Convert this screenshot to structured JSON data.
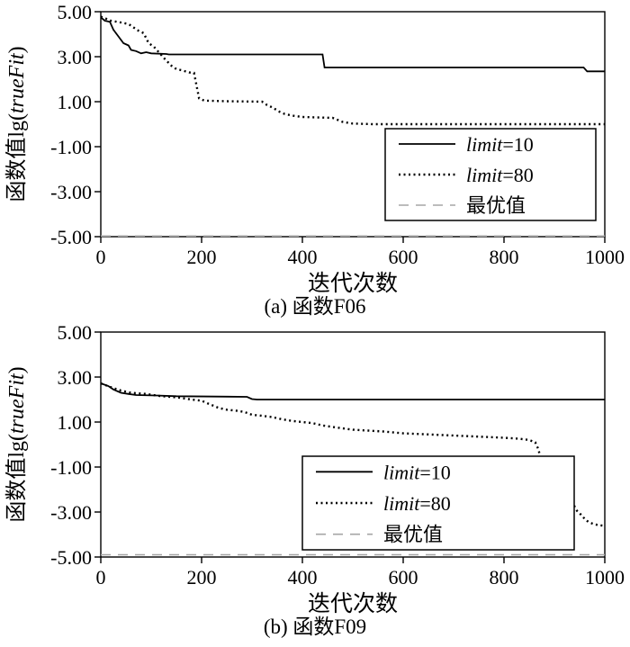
{
  "page": {
    "background": "#ffffff"
  },
  "chart_data": [
    {
      "type": "line",
      "caption": "(a) 函数F06",
      "xlabel": "迭代次数",
      "ylabel": "函数值lg(trueFit)",
      "ylabel_parts": [
        {
          "t": "函数值lg(",
          "i": false
        },
        {
          "t": "trueFit",
          "i": true
        },
        {
          "t": ")",
          "i": false
        }
      ],
      "xlim": [
        0,
        1000
      ],
      "ylim": [
        -5,
        5
      ],
      "xticks": [
        {
          "v": 0,
          "label": "0"
        },
        {
          "v": 200,
          "label": "200"
        },
        {
          "v": 400,
          "label": "400"
        },
        {
          "v": 600,
          "label": "600"
        },
        {
          "v": 800,
          "label": "800"
        },
        {
          "v": 1000,
          "label": "1000"
        }
      ],
      "yticks": [
        {
          "v": 5,
          "label": "5.00"
        },
        {
          "v": 3,
          "label": "3.00"
        },
        {
          "v": 1,
          "label": "1.00"
        },
        {
          "v": -1,
          "label": "-1.00"
        },
        {
          "v": -3,
          "label": "-3.00"
        },
        {
          "v": -5,
          "label": "-5.00"
        }
      ],
      "legend": {
        "position": "right-middle",
        "entries": [
          {
            "name": "limit=10",
            "style": "solid",
            "color": "#000000"
          },
          {
            "name": "limit=80",
            "style": "dotted",
            "color": "#000000"
          },
          {
            "name": "最优值",
            "style": "dashed",
            "color": "#a6a6a6"
          }
        ]
      },
      "series": [
        {
          "name": "limit=10",
          "style": "solid",
          "color": "#000000",
          "points": [
            [
              0,
              4.75
            ],
            [
              8,
              4.6
            ],
            [
              18,
              4.55
            ],
            [
              25,
              4.2
            ],
            [
              35,
              3.9
            ],
            [
              45,
              3.6
            ],
            [
              55,
              3.5
            ],
            [
              60,
              3.3
            ],
            [
              70,
              3.25
            ],
            [
              80,
              3.15
            ],
            [
              90,
              3.2
            ],
            [
              100,
              3.15
            ],
            [
              130,
              3.12
            ],
            [
              135,
              3.1
            ],
            [
              440,
              3.1
            ],
            [
              444,
              2.52
            ],
            [
              958,
              2.52
            ],
            [
              965,
              2.35
            ],
            [
              1000,
              2.35
            ]
          ]
        },
        {
          "name": "limit=80",
          "style": "dotted",
          "color": "#000000",
          "points": [
            [
              0,
              4.78
            ],
            [
              20,
              4.6
            ],
            [
              40,
              4.52
            ],
            [
              55,
              4.45
            ],
            [
              65,
              4.3
            ],
            [
              75,
              4.15
            ],
            [
              85,
              4.05
            ],
            [
              95,
              3.6
            ],
            [
              105,
              3.45
            ],
            [
              115,
              3.2
            ],
            [
              125,
              2.95
            ],
            [
              140,
              2.6
            ],
            [
              150,
              2.45
            ],
            [
              160,
              2.4
            ],
            [
              175,
              2.3
            ],
            [
              185,
              2.28
            ],
            [
              195,
              1.15
            ],
            [
              205,
              1.05
            ],
            [
              250,
              1.02
            ],
            [
              320,
              1.0
            ],
            [
              330,
              0.85
            ],
            [
              340,
              0.75
            ],
            [
              355,
              0.55
            ],
            [
              365,
              0.45
            ],
            [
              380,
              0.38
            ],
            [
              400,
              0.32
            ],
            [
              430,
              0.3
            ],
            [
              460,
              0.28
            ],
            [
              480,
              0.1
            ],
            [
              500,
              0.03
            ],
            [
              540,
              0.0
            ],
            [
              1000,
              0.0
            ]
          ]
        },
        {
          "name": "最优值",
          "style": "dashed",
          "color": "#a6a6a6",
          "points": [
            [
              0,
              -4.97
            ],
            [
              1000,
              -4.97
            ]
          ]
        }
      ]
    },
    {
      "type": "line",
      "caption": "(b) 函数F09",
      "xlabel": "迭代次数",
      "ylabel": "函数值lg(trueFit)",
      "ylabel_parts": [
        {
          "t": "函数值lg(",
          "i": false
        },
        {
          "t": "trueFit",
          "i": true
        },
        {
          "t": ")",
          "i": false
        }
      ],
      "xlim": [
        0,
        1000
      ],
      "ylim": [
        -5,
        5
      ],
      "xticks": [
        {
          "v": 0,
          "label": "0"
        },
        {
          "v": 200,
          "label": "200"
        },
        {
          "v": 400,
          "label": "400"
        },
        {
          "v": 600,
          "label": "600"
        },
        {
          "v": 800,
          "label": "800"
        },
        {
          "v": 1000,
          "label": "1000"
        }
      ],
      "yticks": [
        {
          "v": 5,
          "label": "5.00"
        },
        {
          "v": 3,
          "label": "3.00"
        },
        {
          "v": 1,
          "label": "1.00"
        },
        {
          "v": -1,
          "label": "-1.00"
        },
        {
          "v": -3,
          "label": "-3.00"
        },
        {
          "v": -5,
          "label": "-5.00"
        }
      ],
      "legend": {
        "position": "center-bottom",
        "entries": [
          {
            "name": "limit=10",
            "style": "solid",
            "color": "#000000"
          },
          {
            "name": "limit=80",
            "style": "dotted",
            "color": "#000000"
          },
          {
            "name": "最优值",
            "style": "dashed",
            "color": "#a6a6a6"
          }
        ]
      },
      "series": [
        {
          "name": "limit=10",
          "style": "solid",
          "color": "#000000",
          "points": [
            [
              0,
              2.72
            ],
            [
              15,
              2.6
            ],
            [
              25,
              2.45
            ],
            [
              40,
              2.3
            ],
            [
              55,
              2.25
            ],
            [
              70,
              2.2
            ],
            [
              110,
              2.18
            ],
            [
              150,
              2.15
            ],
            [
              290,
              2.12
            ],
            [
              300,
              2.02
            ],
            [
              310,
              2.0
            ],
            [
              1000,
              2.0
            ]
          ]
        },
        {
          "name": "limit=80",
          "style": "dotted",
          "color": "#000000",
          "points": [
            [
              0,
              2.72
            ],
            [
              20,
              2.55
            ],
            [
              40,
              2.4
            ],
            [
              60,
              2.3
            ],
            [
              90,
              2.25
            ],
            [
              120,
              2.15
            ],
            [
              150,
              2.1
            ],
            [
              180,
              2.0
            ],
            [
              200,
              1.95
            ],
            [
              215,
              1.8
            ],
            [
              235,
              1.62
            ],
            [
              250,
              1.55
            ],
            [
              270,
              1.5
            ],
            [
              285,
              1.45
            ],
            [
              300,
              1.32
            ],
            [
              320,
              1.28
            ],
            [
              340,
              1.22
            ],
            [
              360,
              1.12
            ],
            [
              380,
              1.05
            ],
            [
              400,
              1.0
            ],
            [
              420,
              0.95
            ],
            [
              440,
              0.85
            ],
            [
              460,
              0.78
            ],
            [
              480,
              0.72
            ],
            [
              500,
              0.66
            ],
            [
              530,
              0.62
            ],
            [
              560,
              0.58
            ],
            [
              600,
              0.5
            ],
            [
              640,
              0.46
            ],
            [
              680,
              0.42
            ],
            [
              720,
              0.38
            ],
            [
              760,
              0.34
            ],
            [
              800,
              0.3
            ],
            [
              830,
              0.26
            ],
            [
              850,
              0.2
            ],
            [
              862,
              0.1
            ],
            [
              868,
              -0.2
            ],
            [
              875,
              -0.8
            ],
            [
              882,
              -1.3
            ],
            [
              890,
              -1.55
            ],
            [
              900,
              -1.65
            ],
            [
              908,
              -2.0
            ],
            [
              918,
              -2.05
            ],
            [
              925,
              -2.45
            ],
            [
              935,
              -2.55
            ],
            [
              945,
              -2.95
            ],
            [
              952,
              -3.1
            ],
            [
              960,
              -3.3
            ],
            [
              968,
              -3.45
            ],
            [
              980,
              -3.55
            ],
            [
              1000,
              -3.62
            ]
          ]
        },
        {
          "name": "最优值",
          "style": "dashed",
          "color": "#a6a6a6",
          "points": [
            [
              0,
              -4.9
            ],
            [
              1000,
              -4.9
            ]
          ]
        }
      ]
    }
  ]
}
